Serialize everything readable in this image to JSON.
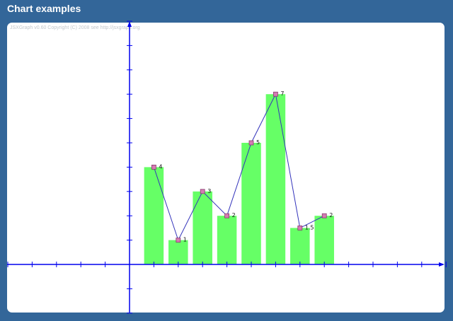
{
  "page": {
    "title": "Chart examples",
    "copyright": "JSXGraph v0.60 Copyright (C) 2008 see http://jsxgraph.org"
  },
  "colors": {
    "background": "#336699",
    "bar_fill": "#66ff66",
    "axis": "#0000ee",
    "line": "#3333bb",
    "point": "#d57bb3"
  },
  "chart_data": {
    "type": "bar",
    "overlay": "line",
    "x": [
      1,
      2,
      3,
      4,
      5,
      6,
      7,
      8
    ],
    "values": [
      4,
      1,
      3,
      2,
      5,
      7,
      1.5,
      2
    ],
    "labels": [
      "4",
      "1",
      "3",
      "2",
      "5",
      "7",
      "1.5",
      "2"
    ],
    "xlim": [
      -5.2,
      13
    ],
    "ylim": [
      -2,
      10
    ],
    "grid": false,
    "legend": "none"
  }
}
